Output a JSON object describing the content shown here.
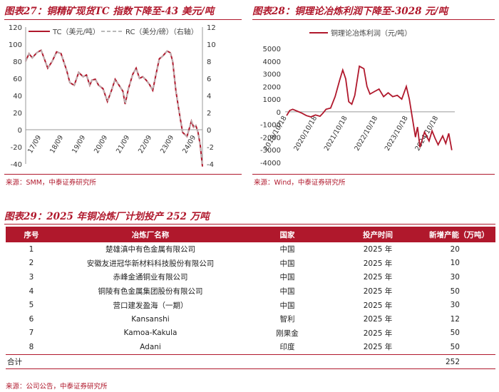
{
  "fig27": {
    "title": "图表27：铜精矿现货TC 指数下降至-43 美元/吨",
    "source": "来源：SMM，中泰证券研究所"
  },
  "fig28": {
    "title": "图表28：铜理论冶炼利润下降至-3028 元/吨",
    "source": "来源：Wind，中泰证券研究所"
  },
  "fig29": {
    "title": "图表29：2025 年铜冶炼厂计划投产 252 万吨",
    "source": "来源：公司公告，中泰证券研究所"
  },
  "colors": {
    "accent": "#b0182c",
    "series_tc": "#b0182c",
    "series_rc": "#b9b9b9"
  },
  "chart_data": [
    {
      "type": "line",
      "legend_placement": "top",
      "x_tick_labels": [
        "17/09",
        "18/09",
        "19/09",
        "20/09",
        "21/09",
        "22/09",
        "23/09",
        "24/09"
      ],
      "y_left_ticks": [
        "-40",
        "-20",
        "0",
        "20",
        "40",
        "60",
        "80",
        "100",
        "120"
      ],
      "y_right_ticks": [
        "-4",
        "-2",
        "0",
        "2",
        "4",
        "6",
        "8",
        "10",
        "12"
      ],
      "ylim_left": [
        -40,
        120
      ],
      "ylim_right": [
        -4,
        12
      ],
      "series": [
        {
          "name": "TC（美元/吨）",
          "axis": "left",
          "x": [
            2017.0,
            2017.15,
            2017.3,
            2017.5,
            2017.7,
            2018.0,
            2018.2,
            2018.4,
            2018.6,
            2018.85,
            2019.0,
            2019.2,
            2019.4,
            2019.6,
            2019.75,
            2019.9,
            2020.0,
            2020.15,
            2020.3,
            2020.5,
            2020.7,
            2020.9,
            2021.05,
            2021.2,
            2021.4,
            2021.5,
            2021.65,
            2021.85,
            2022.0,
            2022.15,
            2022.3,
            2022.45,
            2022.6,
            2022.75,
            2022.9,
            2023.05,
            2023.2,
            2023.4,
            2023.55,
            2023.65,
            2023.8,
            2023.95,
            2024.1,
            2024.3,
            2024.5,
            2024.6,
            2024.7,
            2024.8,
            2024.9,
            2025.0
          ],
          "values": [
            80,
            89,
            84,
            90,
            93,
            72,
            80,
            91,
            89,
            70,
            55,
            52,
            67,
            62,
            64,
            52,
            58,
            59,
            52,
            48,
            33,
            47,
            59,
            53,
            45,
            30,
            48,
            65,
            72,
            60,
            62,
            58,
            53,
            46,
            65,
            83,
            86,
            92,
            90,
            80,
            45,
            20,
            -3,
            -8,
            10,
            3,
            5,
            -3,
            -18,
            -43
          ]
        },
        {
          "name": "RC（美分/磅）（右轴）",
          "axis": "right",
          "x": [
            2017.0,
            2017.15,
            2017.3,
            2017.5,
            2017.7,
            2018.0,
            2018.2,
            2018.4,
            2018.6,
            2018.85,
            2019.0,
            2019.2,
            2019.4,
            2019.6,
            2019.75,
            2019.9,
            2020.0,
            2020.15,
            2020.3,
            2020.5,
            2020.7,
            2020.9,
            2021.05,
            2021.2,
            2021.4,
            2021.5,
            2021.65,
            2021.85,
            2022.0,
            2022.15,
            2022.3,
            2022.45,
            2022.6,
            2022.75,
            2022.9,
            2023.05,
            2023.2,
            2023.4,
            2023.55,
            2023.65,
            2023.8,
            2023.95,
            2024.1,
            2024.3,
            2024.5,
            2024.6,
            2024.7,
            2024.8,
            2024.9,
            2025.0
          ],
          "values": [
            8,
            8.9,
            8.4,
            9,
            9.3,
            7.2,
            8,
            9.1,
            8.9,
            7,
            5.5,
            5.2,
            6.7,
            6.2,
            6.4,
            5.2,
            5.8,
            5.9,
            5.2,
            4.8,
            3.3,
            4.7,
            5.9,
            5.3,
            4.5,
            3,
            4.8,
            6.5,
            7.2,
            6,
            6.2,
            5.8,
            5.3,
            4.6,
            6.5,
            8.3,
            8.6,
            9.2,
            9,
            8,
            4.5,
            2,
            -0.3,
            -0.8,
            1,
            0.3,
            0.5,
            -0.3,
            -1.8,
            -4.3
          ]
        }
      ]
    },
    {
      "type": "line",
      "legend_placement": "top",
      "x_tick_labels": [
        "2019/10/18",
        "2020/10/18",
        "2021/10/18",
        "2022/10/18",
        "2023/10/18",
        "2024/10/18"
      ],
      "y_ticks": [
        "-4000",
        "-3000",
        "-2000",
        "-1000",
        "0",
        "1000",
        "2000",
        "3000",
        "4000",
        "5000"
      ],
      "ylim": [
        -4000,
        5000
      ],
      "series": [
        {
          "name": "铜理论冶炼利润（元/吨）",
          "x": [
            2019.8,
            2019.9,
            2020.0,
            2020.15,
            2020.3,
            2020.45,
            2020.6,
            2020.75,
            2020.9,
            2021.0,
            2021.1,
            2021.25,
            2021.4,
            2021.55,
            2021.65,
            2021.75,
            2021.85,
            2021.95,
            2022.05,
            2022.2,
            2022.35,
            2022.45,
            2022.55,
            2022.7,
            2022.85,
            2023.0,
            2023.15,
            2023.3,
            2023.45,
            2023.6,
            2023.75,
            2023.85,
            2023.95,
            2024.05,
            2024.12,
            2024.2,
            2024.35,
            2024.5,
            2024.6,
            2024.7,
            2024.8,
            2024.95,
            2025.05,
            2025.15,
            2025.25
          ],
          "values": [
            -300,
            100,
            200,
            50,
            -100,
            -300,
            -400,
            -250,
            -350,
            -100,
            200,
            300,
            1200,
            2500,
            3300,
            2600,
            800,
            600,
            1300,
            3600,
            3400,
            2000,
            1400,
            1600,
            1800,
            1200,
            1500,
            1200,
            1300,
            1000,
            2000,
            1000,
            -500,
            -2000,
            -1200,
            -2800,
            -1600,
            -2300,
            -1500,
            -2100,
            -2600,
            -1900,
            -2500,
            -1700,
            -3028
          ]
        }
      ]
    }
  ],
  "table": {
    "headers": [
      "序号",
      "冶炼厂名称",
      "国家",
      "投产时间",
      "新增产能（万吨）"
    ],
    "rows": [
      [
        "1",
        "楚雄滇中有色金属有限公司",
        "中国",
        "2025 年",
        "20"
      ],
      [
        "2",
        "安徽友进冠华新材料科技股份有限公司",
        "中国",
        "2025 年",
        "10"
      ],
      [
        "3",
        "赤峰金通铜业有限公司",
        "中国",
        "2025 年",
        "30"
      ],
      [
        "4",
        "铜陵有色金属集团股份有限公司",
        "中国",
        "2025 年",
        "50"
      ],
      [
        "5",
        "营口建发盈海（一期）",
        "中国",
        "2025 年",
        "30"
      ],
      [
        "6",
        "Kansanshi",
        "智利",
        "2025 年",
        "12"
      ],
      [
        "7",
        "Kamoa-Kakula",
        "刚果金",
        "2025 年",
        "50"
      ],
      [
        "8",
        "Adani",
        "印度",
        "2025 年",
        "50"
      ]
    ],
    "total_label": "合计",
    "total_value": "252"
  }
}
